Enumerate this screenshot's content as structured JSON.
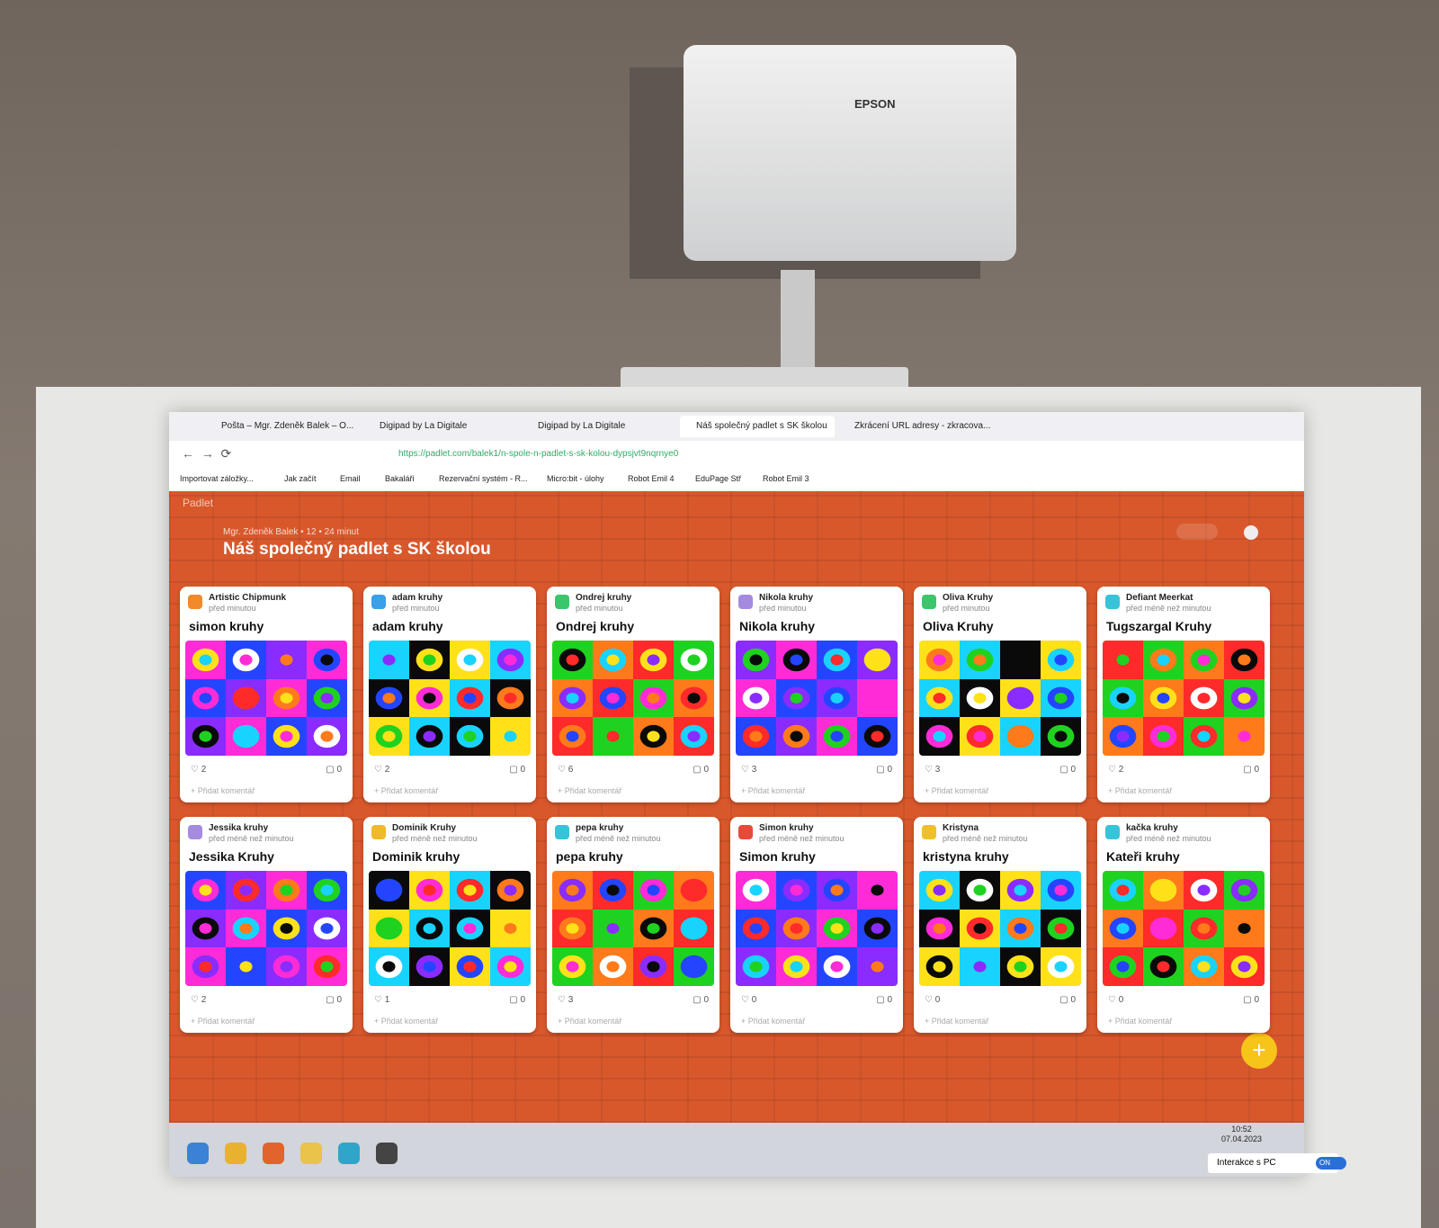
{
  "projector": {
    "brand": "EPSON"
  },
  "browser": {
    "tabs": [
      "Pošta – Mgr. Zdeněk Balek – O...",
      "Digipad by La Digitale",
      "Digipad by La Digitale",
      "Náš společný padlet s SK školou",
      "Zkrácení URL adresy - zkracova..."
    ],
    "url": "https://padlet.com/balek1/n-spole-n-padlet-s-sk-kolou-dypsjvt9nqrnye0",
    "bookmarks": [
      "Importovat záložky...",
      "Jak začít",
      "Email",
      "Bakaláři",
      "Rezervační systém - R...",
      "Micro:bit - úlohy",
      "Robot Emil 4",
      "EduPage Stř",
      "Robot Emil 3"
    ]
  },
  "padlet": {
    "brand": "Padlet",
    "meta": "Mgr. Zdeněk Balek • 12 • 24 minut",
    "title": "Náš společný padlet s SK školou",
    "add_comment": "Přidat komentář",
    "cards": [
      {
        "author": "Artistic Chipmunk",
        "time": "před minutou",
        "title": "simon kruhy",
        "likes": 2,
        "comments": 0
      },
      {
        "author": "adam kruhy",
        "time": "před minutou",
        "title": "adam kruhy",
        "likes": 2,
        "comments": 0
      },
      {
        "author": "Ondrej kruhy",
        "time": "před minutou",
        "title": "Ondrej kruhy",
        "likes": 6,
        "comments": 0
      },
      {
        "author": "Nikola kruhy",
        "time": "před minutou",
        "title": "Nikola kruhy",
        "likes": 3,
        "comments": 0
      },
      {
        "author": "Oliva Kruhy",
        "time": "před minutou",
        "title": "Oliva Kruhy",
        "likes": 3,
        "comments": 0
      },
      {
        "author": "Defiant Meerkat",
        "time": "před méně než minutou",
        "title": "Tugszargal Kruhy",
        "likes": 2,
        "comments": 0
      },
      {
        "author": "Jessika kruhy",
        "time": "před méně než minutou",
        "title": "Jessika Kruhy",
        "likes": 2,
        "comments": 0
      },
      {
        "author": "Dominik Kruhy",
        "time": "před méně než minutou",
        "title": "Dominik kruhy",
        "likes": 1,
        "comments": 0
      },
      {
        "author": "pepa kruhy",
        "time": "před méně než minutou",
        "title": "pepa kruhy",
        "likes": 3,
        "comments": 0
      },
      {
        "author": "Simon kruhy",
        "time": "před méně než minutou",
        "title": "Simon kruhy",
        "likes": 0,
        "comments": 0
      },
      {
        "author": "Kristyna",
        "time": "před méně než minutou",
        "title": "kristyna kruhy",
        "likes": 0,
        "comments": 0
      },
      {
        "author": "kačka kruhy",
        "time": "před méně než minutou",
        "title": "Kateři kruhy",
        "likes": 0,
        "comments": 0
      }
    ]
  },
  "taskbar": {
    "time": "10:52",
    "date": "07.04.2023",
    "interaction": "Interakce s PC",
    "toggle": "ON"
  }
}
